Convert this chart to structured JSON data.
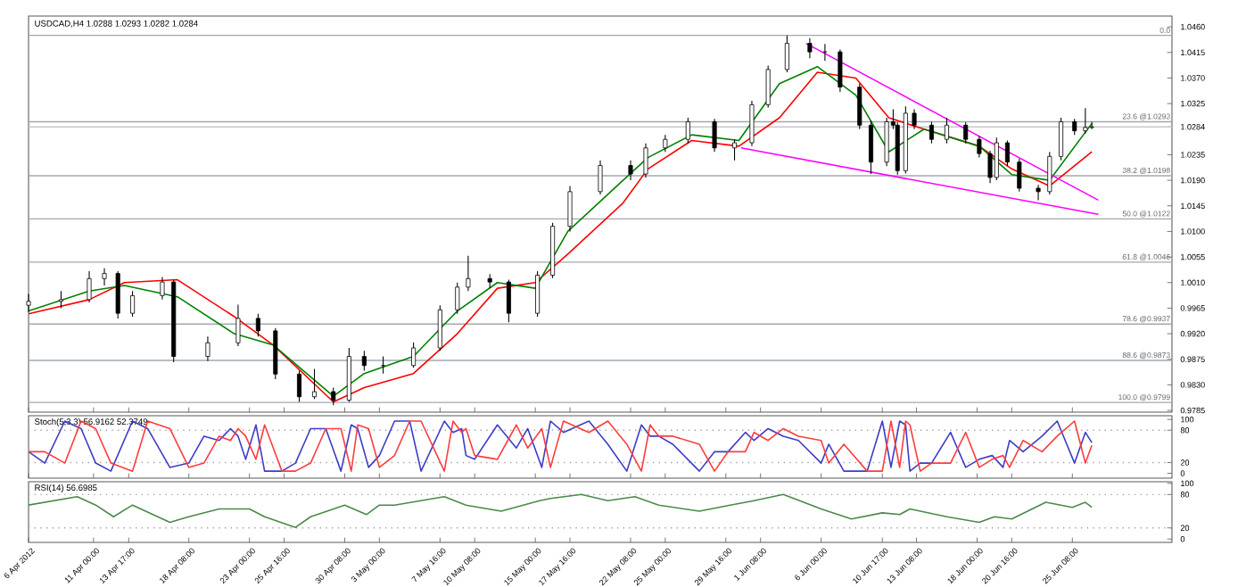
{
  "chart_data": [
    {
      "type": "candlestick",
      "title": "USDCAD,H4 1.0288 1.0293 1.0282 1.0284",
      "tick_labels": "y",
      "xlim": [
        "2012-04-06T00:00",
        "2012-07-03T00:00"
      ],
      "ylim": [
        0.9782,
        1.0479
      ],
      "xticks": [
        {
          "value": "2012-04-06T00:00",
          "label": null
        },
        {
          "value": "2012-04-11T00:00",
          "label": null
        },
        {
          "value": "2012-04-13T17:00",
          "label": null
        },
        {
          "value": "2012-04-18T08:00",
          "label": null
        },
        {
          "value": "2012-04-23T00:00",
          "label": null
        },
        {
          "value": "2012-04-25T16:00",
          "label": null
        },
        {
          "value": "2012-04-30T08:00",
          "label": null
        },
        {
          "value": "2012-05-03T00:00",
          "label": null
        },
        {
          "value": "2012-05-07T16:00",
          "label": null
        },
        {
          "value": "2012-05-10T08:00",
          "label": null
        },
        {
          "value": "2012-05-15T00:00",
          "label": null
        },
        {
          "value": "2012-05-17T16:00",
          "label": null
        },
        {
          "value": "2012-05-22T08:00",
          "label": null
        },
        {
          "value": "2012-05-25T00:00",
          "label": null
        },
        {
          "value": "2012-05-29T16:00",
          "label": null
        },
        {
          "value": "2012-06-01T08:00",
          "label": null
        },
        {
          "value": "2012-06-06T00:00",
          "label": null
        },
        {
          "value": "2012-06-10T17:00",
          "label": null
        },
        {
          "value": "2012-06-13T08:00",
          "label": null
        },
        {
          "value": "2012-06-18T00:00",
          "label": null
        },
        {
          "value": "2012-06-20T16:00",
          "label": null
        },
        {
          "value": "2012-06-25T08:00",
          "label": null
        }
      ],
      "yticks": [
        {
          "value": 1.046,
          "label": "1.0460"
        },
        1.0415,
        {
          "value": 1.037,
          "label": "1.0370"
        },
        1.0325,
        1.0284,
        1.0235,
        {
          "value": 1.019,
          "label": "1.0190"
        },
        1.0145,
        {
          "value": 1.01,
          "label": "1.0100"
        },
        1.0055,
        {
          "value": 1.001,
          "label": "1.0010"
        },
        0.9965,
        {
          "value": 0.992,
          "label": "0.9920"
        },
        0.9875,
        {
          "value": 0.983,
          "label": "0.9830"
        },
        0.9785
      ],
      "x": [
        "2012-04-06T00:00",
        "2012-04-08T12:00",
        "2012-04-10T16:00",
        "2012-04-11T20:00",
        "2012-04-12T21:00",
        "2012-04-14T00:00",
        "2012-04-16T07:00",
        "2012-04-17T04:00",
        "2012-04-19T19:00",
        "2012-04-22T03:00",
        "2012-04-23T16:00",
        "2012-04-25T00:00",
        "2012-04-26T20:00",
        "2012-04-28T00:00",
        "2012-04-29T11:00",
        "2012-04-30T16:00",
        "2012-05-01T20:00",
        "2012-05-03T07:00",
        "2012-05-05T15:00",
        "2012-05-07T16:00",
        "2012-05-09T00:00",
        "2012-05-09T20:00",
        "2012-05-11T12:00",
        "2012-05-12T23:00",
        "2012-05-15T04:00",
        "2012-05-16T08:00",
        "2012-05-17T16:00",
        "2012-05-20T00:00",
        "2012-05-22T08:00",
        "2012-05-23T12:00",
        "2012-05-25T00:00",
        "2012-05-26T18:00",
        "2012-05-28T19:00",
        "2012-05-30T08:00",
        "2012-05-31T16:00",
        "2012-06-01T22:00",
        "2012-06-03T09:00",
        "2012-06-05T03:00",
        "2012-06-06T07:00",
        "2012-06-07T11:00",
        "2012-06-08T23:00",
        "2012-06-09T20:00",
        "2012-06-11T01:00",
        "2012-06-11T13:00",
        "2012-06-11T21:00",
        "2012-06-12T12:00",
        "2012-06-13T04:00",
        "2012-06-14T12:00",
        "2012-06-15T16:00",
        "2012-06-17T03:00",
        "2012-06-18T04:00",
        "2012-06-19T00:00",
        "2012-06-19T12:00",
        "2012-06-20T08:00",
        "2012-06-21T06:00",
        "2012-06-22T17:00",
        "2012-06-23T14:00",
        "2012-06-24T11:00",
        "2012-06-25T12:00",
        "2012-06-26T08:00",
        "2012-06-26T20:00"
      ],
      "ohlc": [
        [
          0.997,
          0.999,
          0.9958,
          0.9977
        ],
        [
          0.9977,
          0.9995,
          0.9965,
          0.998
        ],
        [
          0.998,
          1.003,
          0.9975,
          1.0017
        ],
        [
          1.0017,
          1.0035,
          1.0005,
          1.0026
        ],
        [
          1.0026,
          1.003,
          0.9947,
          0.9956
        ],
        [
          0.9956,
          0.9995,
          0.995,
          0.9987
        ],
        [
          0.9987,
          1.002,
          0.998,
          1.0011
        ],
        [
          1.0011,
          1.0015,
          0.987,
          0.988
        ],
        [
          0.988,
          0.9915,
          0.9872,
          0.9904
        ],
        [
          0.9904,
          0.9971,
          0.9898,
          0.9947
        ],
        [
          0.9947,
          0.9955,
          0.9915,
          0.9925
        ],
        [
          0.9925,
          0.993,
          0.984,
          0.9849
        ],
        [
          0.9849,
          0.9855,
          0.98,
          0.9809
        ],
        [
          0.9809,
          0.9858,
          0.9805,
          0.9818
        ],
        [
          0.9818,
          0.9825,
          0.9794,
          0.9803
        ],
        [
          0.9803,
          0.9895,
          0.98,
          0.988
        ],
        [
          0.988,
          0.989,
          0.9855,
          0.9864
        ],
        [
          0.9864,
          0.988,
          0.985,
          0.9864
        ],
        [
          0.9864,
          0.9905,
          0.986,
          0.9895
        ],
        [
          0.9895,
          0.997,
          0.989,
          0.9962
        ],
        [
          0.9962,
          1.001,
          0.9955,
          1.0002
        ],
        [
          1.0002,
          1.0057,
          0.9995,
          1.0017
        ],
        [
          1.0017,
          1.0025,
          1.0,
          1.0011
        ],
        [
          1.0011,
          1.0015,
          0.994,
          0.9956
        ],
        [
          0.9956,
          1.003,
          0.995,
          1.0023
        ],
        [
          1.0023,
          1.0115,
          1.0018,
          1.0109
        ],
        [
          1.0109,
          1.018,
          1.01,
          1.017
        ],
        [
          1.017,
          1.0225,
          1.0165,
          1.0216
        ],
        [
          1.0216,
          1.0225,
          1.019,
          1.0201
        ],
        [
          1.0201,
          1.0255,
          1.0195,
          1.0247
        ],
        [
          1.0247,
          1.027,
          1.024,
          1.0262
        ],
        [
          1.0262,
          1.03,
          1.0255,
          1.0293
        ],
        [
          1.0293,
          1.0298,
          1.024,
          1.0247
        ],
        [
          1.0247,
          1.0262,
          1.0225,
          1.0256
        ],
        [
          1.0256,
          1.033,
          1.025,
          1.0323
        ],
        [
          1.0323,
          1.0392,
          1.0318,
          1.0385
        ],
        [
          1.0385,
          1.0445,
          1.038,
          1.0431
        ],
        [
          1.0431,
          1.044,
          1.0405,
          1.0416
        ],
        [
          1.0416,
          1.043,
          1.04,
          1.0416
        ],
        [
          1.0416,
          1.042,
          1.0345,
          1.0354
        ],
        [
          1.0354,
          1.036,
          1.028,
          1.0287
        ],
        [
          1.0287,
          1.0295,
          1.0201,
          1.0222
        ],
        [
          1.0222,
          1.03,
          1.0215,
          1.0293
        ],
        [
          1.0293,
          1.0315,
          1.028,
          1.0287
        ],
        [
          1.0287,
          1.0292,
          1.02,
          1.0207
        ],
        [
          1.0207,
          1.032,
          1.0202,
          1.0308
        ],
        [
          1.0308,
          1.0315,
          1.028,
          1.0287
        ],
        [
          1.0287,
          1.0293,
          1.0255,
          1.0262
        ],
        [
          1.0262,
          1.03,
          1.0255,
          1.0287
        ],
        [
          1.0287,
          1.0292,
          1.0255,
          1.0262
        ],
        [
          1.0262,
          1.0268,
          1.023,
          1.0237
        ],
        [
          1.0237,
          1.0242,
          1.0185,
          1.0195
        ],
        [
          1.0195,
          1.0265,
          1.019,
          1.0256
        ],
        [
          1.0256,
          1.026,
          1.0215,
          1.0222
        ],
        [
          1.0222,
          1.0228,
          1.017,
          1.0176
        ],
        [
          1.0176,
          1.0182,
          1.0155,
          1.017
        ],
        [
          1.017,
          1.024,
          1.0165,
          1.0232
        ],
        [
          1.0232,
          1.03,
          1.0225,
          1.0293
        ],
        [
          1.0293,
          1.0298,
          1.027,
          1.0277
        ],
        [
          1.0277,
          1.0317,
          1.0272,
          1.0283
        ],
        [
          1.0283,
          1.0293,
          1.028,
          1.0284
        ]
      ],
      "series": [
        {
          "type": "line",
          "color": "#ff0000",
          "x": [
            "2012-04-06T00:00",
            "2012-04-10T16:00",
            "2012-04-13T09:00",
            "2012-04-17T11:00",
            "2012-04-21T20:00",
            "2012-04-24T20:00",
            "2012-04-29T11:00",
            "2012-05-01T20:00",
            "2012-05-05T15:00",
            "2012-05-09T00:00",
            "2012-05-12T02:00",
            "2012-05-15T00:00",
            "2012-05-17T12:00",
            "2012-05-21T18:00",
            "2012-05-23T16:00",
            "2012-05-27T01:00",
            "2012-05-30T16:00",
            "2012-06-02T19:00",
            "2012-06-05T17:00",
            "2012-06-08T16:00",
            "2012-06-11T05:00",
            "2012-06-13T22:00",
            "2012-06-18T04:00",
            "2012-06-20T16:00",
            "2012-06-23T14:00",
            "2012-06-26T20:00"
          ],
          "values": [
            0.9955,
            0.998,
            1.001,
            1.0015,
            0.995,
            0.99,
            0.98,
            0.9825,
            0.985,
            0.992,
            1.0,
            1.001,
            1.006,
            1.015,
            1.021,
            1.026,
            1.025,
            1.03,
            1.038,
            1.037,
            1.03,
            1.028,
            1.025,
            1.021,
            1.018,
            1.024
          ]
        },
        {
          "type": "line",
          "color": "#008000",
          "x": [
            "2012-04-06T00:00",
            "2012-04-10T16:00",
            "2012-04-13T09:00",
            "2012-04-17T11:00",
            "2012-04-21T20:00",
            "2012-04-24T20:00",
            "2012-04-29T11:00",
            "2012-05-01T20:00",
            "2012-05-05T15:00",
            "2012-05-09T00:00",
            "2012-05-12T02:00",
            "2012-05-15T00:00",
            "2012-05-17T12:00",
            "2012-05-21T18:00",
            "2012-05-23T16:00",
            "2012-05-27T01:00",
            "2012-05-30T16:00",
            "2012-06-02T19:00",
            "2012-06-05T17:00",
            "2012-06-08T16:00",
            "2012-06-11T05:00",
            "2012-06-13T22:00",
            "2012-06-18T04:00",
            "2012-06-20T16:00",
            "2012-06-23T14:00",
            "2012-06-26T20:00"
          ],
          "values": [
            0.996,
            0.9995,
            1.0005,
            0.9985,
            0.992,
            0.99,
            0.981,
            0.985,
            0.988,
            0.996,
            1.001,
            1.0,
            1.01,
            1.019,
            1.023,
            1.027,
            1.026,
            1.036,
            1.039,
            1.034,
            1.024,
            1.028,
            1.025,
            1.02,
            1.019,
            1.029
          ]
        },
        {
          "type": "line",
          "color": "#ff00ff",
          "x": [
            "2012-06-04T20:00",
            "2012-06-27T08:00"
          ],
          "values": [
            1.0431,
            1.0155
          ]
        },
        {
          "type": "line",
          "color": "#ff00ff",
          "x": [
            "2012-05-30T20:00",
            "2012-06-27T08:00"
          ],
          "values": [
            1.0247,
            1.013
          ]
        }
      ],
      "annotations": [
        "0.0"
      ],
      "ref_lines": [
        {
          "axis": "y",
          "value": 1.0445,
          "color": "#a0a8b0"
        },
        {
          "axis": "y",
          "value": 1.0293,
          "label": "23.6 @1.0293",
          "color": "#a0a8b0"
        },
        {
          "axis": "y",
          "value": 1.0198,
          "label": "38.2 @1.0198",
          "color": "#a0a8b0"
        },
        {
          "axis": "y",
          "value": 1.0122,
          "label": "50.0 @1.0122",
          "color": "#a0a8b0"
        },
        {
          "axis": "y",
          "value": 1.0046,
          "label": "61.8 @1.0046",
          "color": "#a0a8b0"
        },
        {
          "axis": "y",
          "value": 0.9937,
          "label": "78.6 @0.9937",
          "color": "#a0a8b0"
        },
        {
          "axis": "y",
          "value": 0.9873,
          "label": "88.6 @0.9873",
          "color": "#a0a8b0"
        },
        {
          "axis": "y",
          "value": 0.9799,
          "label": "100.0 @0.9799",
          "color": "#a0a8b0"
        },
        {
          "axis": "y",
          "value": 1.0284,
          "color": "#c8c8c8"
        }
      ]
    },
    {
      "type": "line",
      "title": "Stoch(5,3,3) 56.9162 52.3749",
      "tick_labels": "y",
      "xlim": [
        "2012-04-06T00:00",
        "2012-07-03T00:00"
      ],
      "ylim": [
        -9,
        107
      ],
      "yticks": [
        0,
        20,
        80,
        100
      ],
      "xticks": [
        {
          "value": "2012-04-06T00:00",
          "label": null
        },
        {
          "value": "2012-04-11T00:00",
          "label": null
        },
        {
          "value": "2012-04-13T17:00",
          "label": null
        },
        {
          "value": "2012-04-18T08:00",
          "label": null
        },
        {
          "value": "2012-04-23T00:00",
          "label": null
        },
        {
          "value": "2012-04-25T16:00",
          "label": null
        },
        {
          "value": "2012-04-30T08:00",
          "label": null
        },
        {
          "value": "2012-05-03T00:00",
          "label": null
        },
        {
          "value": "2012-05-07T16:00",
          "label": null
        },
        {
          "value": "2012-05-10T08:00",
          "label": null
        },
        {
          "value": "2012-05-15T00:00",
          "label": null
        },
        {
          "value": "2012-05-17T16:00",
          "label": null
        },
        {
          "value": "2012-05-22T08:00",
          "label": null
        },
        {
          "value": "2012-05-25T00:00",
          "label": null
        },
        {
          "value": "2012-05-29T16:00",
          "label": null
        },
        {
          "value": "2012-06-01T08:00",
          "label": null
        },
        {
          "value": "2012-06-06T00:00",
          "label": null
        },
        {
          "value": "2012-06-10T17:00",
          "label": null
        },
        {
          "value": "2012-06-13T08:00",
          "label": null
        },
        {
          "value": "2012-06-18T00:00",
          "label": null
        },
        {
          "value": "2012-06-20T16:00",
          "label": null
        },
        {
          "value": "2012-06-25T08:00",
          "label": null
        }
      ],
      "series": [
        {
          "color": "#3c3cc8",
          "x": [
            "2012-04-06T00:00",
            "2012-04-07T06:00",
            "2012-04-08T19:00",
            "2012-04-10T01:00",
            "2012-04-11T04:00",
            "2012-04-12T08:00",
            "2012-04-14T00:00",
            "2012-04-15T04:00",
            "2012-04-16T21:00",
            "2012-04-18T08:00",
            "2012-04-19T12:00",
            "2012-04-20T16:00",
            "2012-04-21T13:00",
            "2012-04-22T03:00",
            "2012-04-22T17:00",
            "2012-04-23T12:00",
            "2012-04-24T04:00",
            "2012-04-25T12:00",
            "2012-04-26T13:00",
            "2012-04-27T17:00",
            "2012-04-28T21:00",
            "2012-04-30T01:00",
            "2012-04-30T20:00",
            "2012-05-01T08:00",
            "2012-05-02T04:00",
            "2012-05-03T00:00",
            "2012-05-04T04:00",
            "2012-05-05T08:00",
            "2012-05-06T05:00",
            "2012-05-08T00:00",
            "2012-05-08T16:00",
            "2012-05-09T08:00",
            "2012-05-09T16:00",
            "2012-05-10T08:00",
            "2012-05-12T02:00",
            "2012-05-13T13:00",
            "2012-05-14T10:00",
            "2012-05-15T12:00",
            "2012-05-16T04:00",
            "2012-05-17T04:00",
            "2012-05-19T03:00",
            "2012-05-20T14:00",
            "2012-05-22T01:00",
            "2012-05-23T04:00",
            "2012-05-23T20:00",
            "2012-05-24T12:00",
            "2012-05-25T14:00",
            "2012-05-27T15:00",
            "2012-05-28T19:00",
            "2012-05-29T20:00",
            "2012-05-31T04:00",
            "2012-05-31T20:00",
            "2012-06-01T22:00",
            "2012-06-03T02:00",
            "2012-06-04T06:00",
            "2012-06-06T00:00",
            "2012-06-06T14:00",
            "2012-06-07T18:00",
            "2012-06-09T13:00",
            "2012-06-10T17:00",
            "2012-06-11T09:00",
            "2012-06-12T01:00",
            "2012-06-12T12:00",
            "2012-06-12T20:00",
            "2012-06-13T15:00",
            "2012-06-14T12:00",
            "2012-06-15T23:00",
            "2012-06-17T03:00",
            "2012-06-18T04:00",
            "2012-06-19T04:00",
            "2012-06-20T00:00",
            "2012-06-20T12:00",
            "2012-06-21T13:00",
            "2012-06-23T00:00",
            "2012-06-24T04:00",
            "2012-06-25T12:00",
            "2012-06-26T08:00",
            "2012-06-26T20:00"
          ],
          "values": [
            40,
            19,
            97,
            83,
            19,
            4,
            97,
            83,
            11,
            19,
            69,
            61,
            83,
            69,
            26,
            90,
            4,
            4,
            19,
            83,
            83,
            4,
            90,
            83,
            11,
            33,
            97,
            97,
            4,
            97,
            76,
            83,
            33,
            26,
            90,
            47,
            83,
            11,
            97,
            76,
            97,
            54,
            4,
            90,
            69,
            69,
            54,
            4,
            40,
            40,
            76,
            61,
            83,
            69,
            61,
            19,
            54,
            4,
            4,
            97,
            11,
            97,
            90,
            4,
            19,
            19,
            76,
            11,
            26,
            33,
            11,
            61,
            40,
            69,
            97,
            19,
            76,
            57
          ]
        },
        {
          "color": "#ff3c3c",
          "x": [
            "2012-04-06T00:00",
            "2012-04-07T06:00",
            "2012-04-08T19:00",
            "2012-04-10T01:00",
            "2012-04-11T04:00",
            "2012-04-12T08:00",
            "2012-04-14T00:00",
            "2012-04-15T04:00",
            "2012-04-16T21:00",
            "2012-04-18T08:00",
            "2012-04-19T12:00",
            "2012-04-20T16:00",
            "2012-04-21T13:00",
            "2012-04-22T03:00",
            "2012-04-22T17:00",
            "2012-04-23T12:00",
            "2012-04-24T04:00",
            "2012-04-25T12:00",
            "2012-04-26T13:00",
            "2012-04-27T17:00",
            "2012-04-28T21:00",
            "2012-04-30T01:00",
            "2012-04-30T20:00",
            "2012-05-01T08:00",
            "2012-05-02T04:00",
            "2012-05-03T00:00",
            "2012-05-04T04:00",
            "2012-05-05T08:00",
            "2012-05-06T05:00",
            "2012-05-08T00:00",
            "2012-05-08T16:00",
            "2012-05-09T08:00",
            "2012-05-09T16:00",
            "2012-05-10T08:00",
            "2012-05-12T02:00",
            "2012-05-13T13:00",
            "2012-05-14T10:00",
            "2012-05-15T12:00",
            "2012-05-16T04:00",
            "2012-05-17T04:00",
            "2012-05-19T03:00",
            "2012-05-20T14:00",
            "2012-05-22T01:00",
            "2012-05-23T04:00",
            "2012-05-23T20:00",
            "2012-05-24T12:00",
            "2012-05-25T14:00",
            "2012-05-27T15:00",
            "2012-05-28T19:00",
            "2012-05-29T20:00",
            "2012-05-31T04:00",
            "2012-05-31T20:00",
            "2012-06-01T22:00",
            "2012-06-03T02:00",
            "2012-06-04T06:00",
            "2012-06-06T00:00",
            "2012-06-06T14:00",
            "2012-06-07T18:00",
            "2012-06-09T13:00",
            "2012-06-10T17:00",
            "2012-06-11T09:00",
            "2012-06-12T01:00",
            "2012-06-12T12:00",
            "2012-06-12T20:00",
            "2012-06-13T15:00",
            "2012-06-14T12:00",
            "2012-06-15T23:00",
            "2012-06-17T03:00",
            "2012-06-18T04:00",
            "2012-06-19T04:00",
            "2012-06-20T00:00",
            "2012-06-20T12:00",
            "2012-06-21T13:00",
            "2012-06-23T00:00",
            "2012-06-24T04:00",
            "2012-06-25T12:00",
            "2012-06-26T08:00",
            "2012-06-26T20:00"
          ],
          "values": [
            40,
            40,
            19,
            97,
            83,
            19,
            4,
            97,
            83,
            11,
            19,
            69,
            61,
            83,
            69,
            26,
            90,
            4,
            4,
            19,
            83,
            83,
            4,
            90,
            83,
            11,
            33,
            97,
            97,
            4,
            97,
            76,
            83,
            33,
            26,
            90,
            47,
            83,
            11,
            97,
            76,
            97,
            54,
            4,
            90,
            69,
            69,
            54,
            4,
            40,
            40,
            76,
            61,
            83,
            69,
            61,
            19,
            54,
            4,
            4,
            97,
            11,
            97,
            90,
            4,
            19,
            19,
            76,
            11,
            26,
            33,
            11,
            61,
            40,
            69,
            97,
            19,
            52
          ]
        }
      ],
      "ref_lines": [
        {
          "axis": "y",
          "value": 20,
          "color": "#a0a0a0",
          "line_style": "dotted"
        },
        {
          "axis": "y",
          "value": 80,
          "color": "#a0a0a0",
          "line_style": "dotted"
        }
      ]
    },
    {
      "type": "line",
      "title": "RSI(14) 56.6985",
      "xlim": [
        "2012-04-06T00:00",
        "2012-07-03T00:00"
      ],
      "ylim": [
        -6,
        103
      ],
      "yticks": [
        0,
        20,
        80,
        100
      ],
      "xticks": [
        {
          "value": "2012-04-06T00:00",
          "label": "6 Apr 2012"
        },
        {
          "value": "2012-04-11T00:00",
          "label": "11 Apr 00:00"
        },
        {
          "value": "2012-04-13T17:00",
          "label": "13 Apr 17:00"
        },
        {
          "value": "2012-04-18T08:00",
          "label": "18 Apr 08:00"
        },
        {
          "value": "2012-04-23T00:00",
          "label": "23 Apr 00:00"
        },
        {
          "value": "2012-04-25T16:00",
          "label": "25 Apr 16:00"
        },
        {
          "value": "2012-04-30T08:00",
          "label": "30 Apr 08:00"
        },
        {
          "value": "2012-05-03T00:00",
          "label": "3 May 00:00"
        },
        {
          "value": "2012-05-07T16:00",
          "label": "7 May 16:00"
        },
        {
          "value": "2012-05-10T08:00",
          "label": "10 May 08:00"
        },
        {
          "value": "2012-05-15T00:00",
          "label": "15 May 00:00"
        },
        {
          "value": "2012-05-17T16:00",
          "label": "17 May 16:00"
        },
        {
          "value": "2012-05-22T08:00",
          "label": "22 May 08:00"
        },
        {
          "value": "2012-05-25T00:00",
          "label": "25 May 00:00"
        },
        {
          "value": "2012-05-29T16:00",
          "label": "29 May 16:00"
        },
        {
          "value": "2012-06-01T08:00",
          "label": "1 Jun 08:00"
        },
        {
          "value": "2012-06-06T00:00",
          "label": "6 Jun 00:00"
        },
        {
          "value": "2012-06-10T17:00",
          "label": "10 Jun 17:00"
        },
        {
          "value": "2012-06-13T08:00",
          "label": "13 Jun 08:00"
        },
        {
          "value": "2012-06-18T00:00",
          "label": "18 Jun 00:00"
        },
        {
          "value": "2012-06-20T16:00",
          "label": "20 Jun 16:00"
        },
        {
          "value": "2012-06-25T08:00",
          "label": "25 Jun 08:00"
        }
      ],
      "series": [
        {
          "color": "#4a8a4a",
          "x": [
            "2012-04-06T00:00",
            "2012-04-09T18:00",
            "2012-04-11T04:00",
            "2012-04-12T13:00",
            "2012-04-14T00:00",
            "2012-04-16T21:00",
            "2012-04-18T08:00",
            "2012-04-20T16:00",
            "2012-04-23T00:00",
            "2012-04-24T04:00",
            "2012-04-26T13:00",
            "2012-04-27T17:00",
            "2012-04-30T08:00",
            "2012-05-02T00:00",
            "2012-05-03T00:00",
            "2012-05-04T04:00",
            "2012-05-08T00:00",
            "2012-05-09T16:00",
            "2012-05-12T09:00",
            "2012-05-15T08:00",
            "2012-05-16T04:00",
            "2012-05-18T13:00",
            "2012-05-20T14:00",
            "2012-05-22T16:00",
            "2012-05-24T12:00",
            "2012-05-27T15:00",
            "2012-05-30T00:00",
            "2012-05-31T20:00",
            "2012-06-03T02:00",
            "2012-06-06T00:00",
            "2012-06-08T08:00",
            "2012-06-10T17:00",
            "2012-06-12T01:00",
            "2012-06-12T20:00",
            "2012-06-15T16:00",
            "2012-06-18T04:00",
            "2012-06-19T08:00",
            "2012-06-20T16:00",
            "2012-06-23T07:00",
            "2012-06-25T08:00",
            "2012-06-26T08:00",
            "2012-06-26T20:00"
          ],
          "values": [
            61,
            76,
            61,
            40,
            61,
            30,
            40,
            54,
            54,
            40,
            21,
            40,
            61,
            44,
            61,
            61,
            76,
            61,
            50,
            69,
            73,
            80,
            69,
            76,
            61,
            50,
            61,
            69,
            80,
            54,
            36,
            47,
            44,
            54,
            40,
            30,
            40,
            36,
            66,
            57,
            66,
            57
          ]
        }
      ],
      "ref_lines": [
        {
          "axis": "y",
          "value": 20,
          "color": "#a0a0a0",
          "line_style": "dotted"
        },
        {
          "axis": "y",
          "value": 80,
          "color": "#a0a0a0",
          "line_style": "dotted"
        }
      ]
    }
  ]
}
